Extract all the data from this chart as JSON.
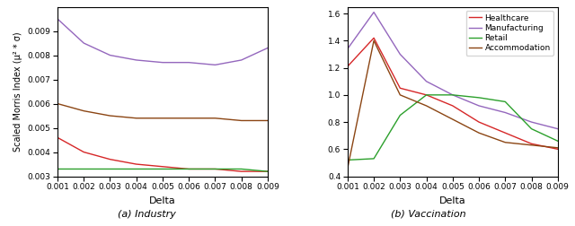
{
  "delta": [
    0.001,
    0.002,
    0.003,
    0.004,
    0.005,
    0.006,
    0.007,
    0.008,
    0.009
  ],
  "industry": {
    "Healthcare": [
      0.0046,
      0.004,
      0.0037,
      0.0035,
      0.0034,
      0.0033,
      0.0033,
      0.0032,
      0.0032
    ],
    "Manufacturing": [
      0.0095,
      0.0085,
      0.008,
      0.0078,
      0.0077,
      0.0077,
      0.0076,
      0.0078,
      0.0083
    ],
    "Retail": [
      0.0033,
      0.0033,
      0.0033,
      0.0033,
      0.0033,
      0.0033,
      0.0033,
      0.0033,
      0.0032
    ],
    "Accommodation": [
      0.006,
      0.0057,
      0.0055,
      0.0054,
      0.0054,
      0.0054,
      0.0054,
      0.0053,
      0.0053
    ]
  },
  "vaccination": {
    "Healthcare": [
      1.21,
      1.42,
      1.05,
      1.0,
      0.92,
      0.8,
      0.72,
      0.64,
      0.6
    ],
    "Manufacturing": [
      1.34,
      1.61,
      1.3,
      1.1,
      1.0,
      0.92,
      0.87,
      0.8,
      0.75
    ],
    "Retail": [
      0.52,
      0.53,
      0.85,
      1.0,
      1.0,
      0.98,
      0.95,
      0.75,
      0.66
    ],
    "Accommodation": [
      0.46,
      1.4,
      1.0,
      0.92,
      0.82,
      0.72,
      0.65,
      0.63,
      0.61
    ]
  },
  "colors": {
    "Healthcare": "#d62728",
    "Manufacturing": "#9467bd",
    "Retail": "#2ca02c",
    "Accommodation": "#8B4513"
  },
  "ylabel_industry": "Scaled Morris Index (μ² * σ)",
  "xlabel": "Delta",
  "title_a": "(a) Industry",
  "title_b": "(b) Vaccination",
  "ylim_industry": [
    0.003,
    0.01
  ],
  "ylim_vaccination": [
    0.4,
    1.65
  ],
  "yticks_industry": [
    0.003,
    0.004,
    0.005,
    0.006,
    0.007,
    0.008,
    0.009
  ],
  "yticks_vaccination": [
    0.4,
    0.6,
    0.8,
    1.0,
    1.2,
    1.4,
    1.6
  ],
  "xtick_labels": [
    "0.001",
    "0.002",
    "0.003",
    "0.004",
    "0.005",
    "0.006",
    "0.007",
    "0.008",
    "0.009"
  ]
}
